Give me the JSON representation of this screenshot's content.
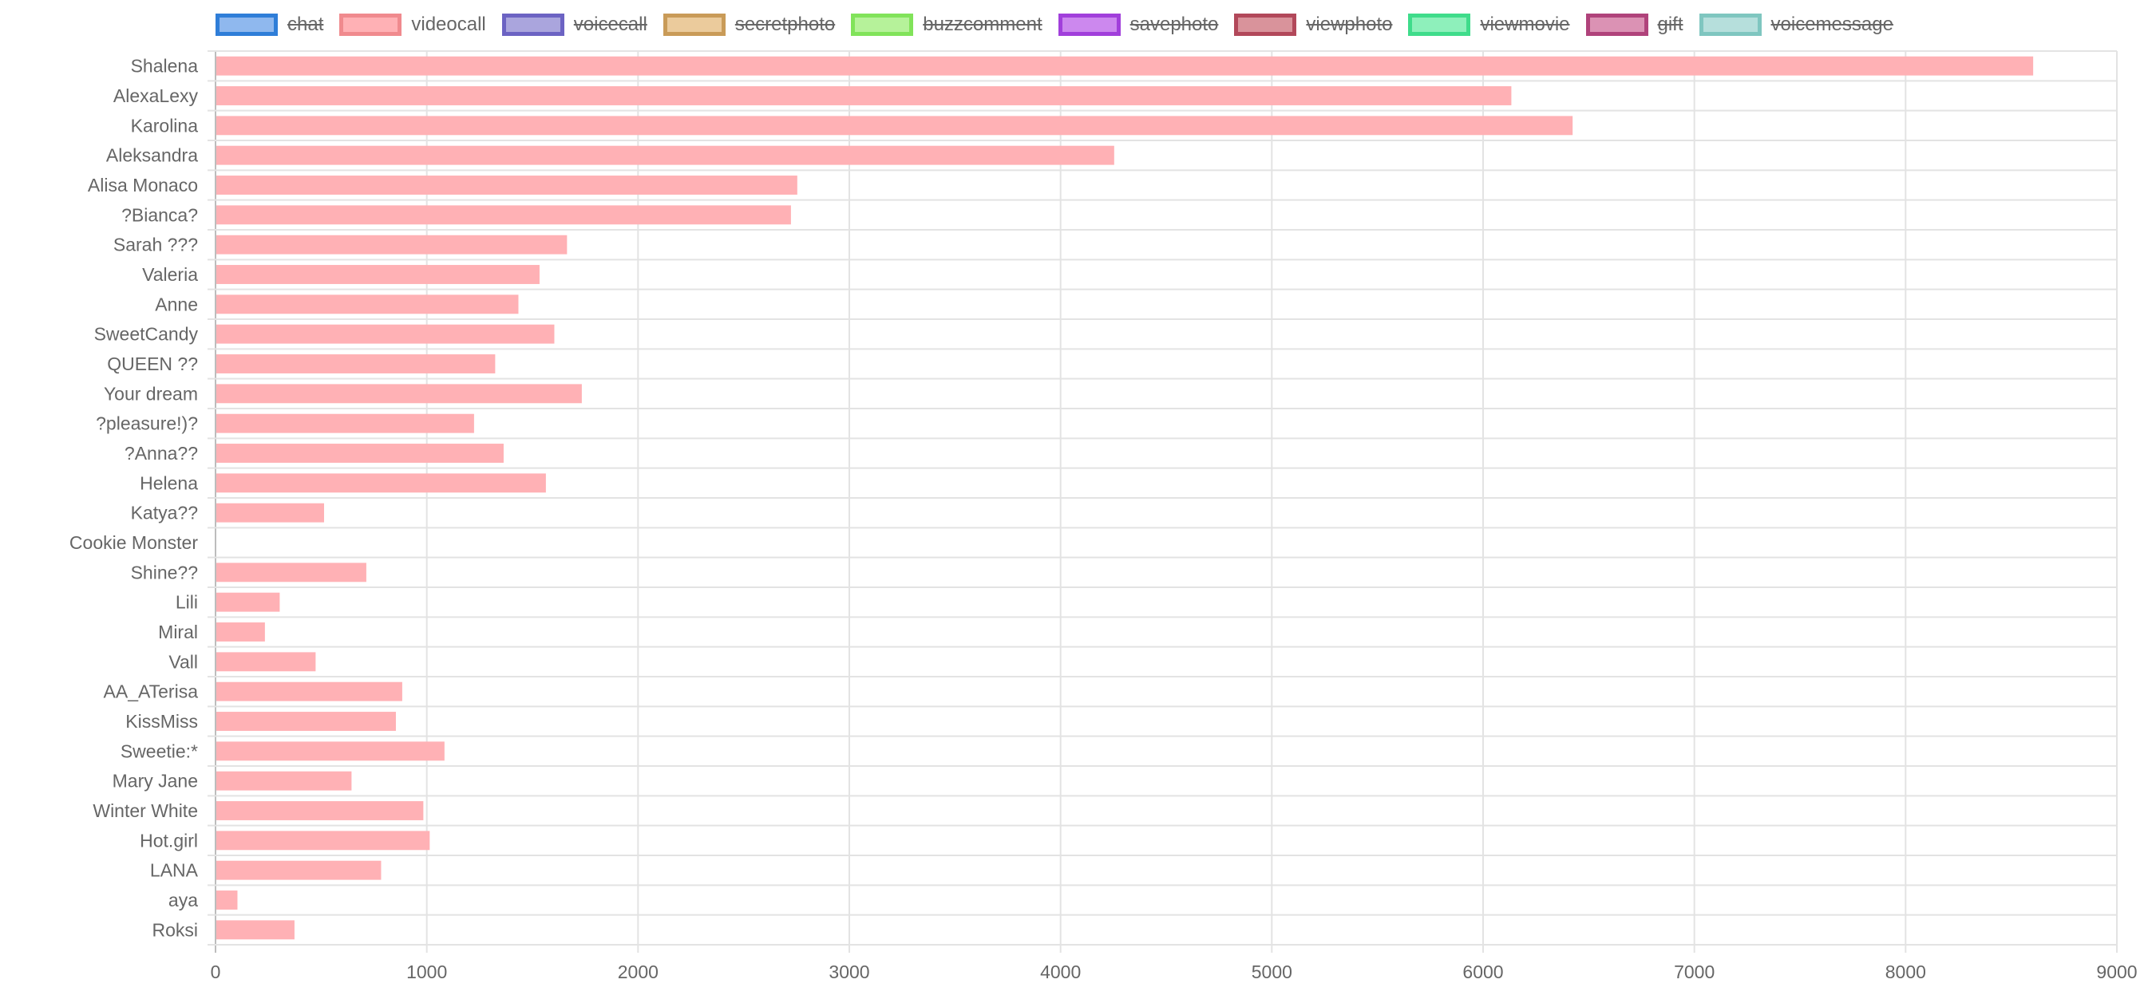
{
  "chart_data": {
    "type": "bar",
    "orientation": "horizontal",
    "legend": [
      {
        "name": "chat",
        "hidden": true,
        "fill": "#8fb8ee",
        "border": "#2f7ed8"
      },
      {
        "name": "videocall",
        "hidden": false,
        "fill": "#ffb1b5",
        "border": "#f08a8e"
      },
      {
        "name": "voicecall",
        "hidden": true,
        "fill": "#aaa5dd",
        "border": "#6c63c3"
      },
      {
        "name": "secretphoto",
        "hidden": true,
        "fill": "#ebcb9c",
        "border": "#c99b58"
      },
      {
        "name": "buzzcomment",
        "hidden": true,
        "fill": "#b6f29a",
        "border": "#81e35a"
      },
      {
        "name": "savephoto",
        "hidden": true,
        "fill": "#cc88ee",
        "border": "#a13fdb"
      },
      {
        "name": "viewphoto",
        "hidden": true,
        "fill": "#d9939b",
        "border": "#b2485a"
      },
      {
        "name": "viewmovie",
        "hidden": true,
        "fill": "#8ef0bb",
        "border": "#3fdc8b"
      },
      {
        "name": "gift",
        "hidden": true,
        "fill": "#db92b4",
        "border": "#b0437b"
      },
      {
        "name": "voicemessage",
        "hidden": true,
        "fill": "#b6dfdc",
        "border": "#7fc6c0"
      }
    ],
    "categories": [
      "Shalena",
      "AlexaLexy",
      "Karolina",
      "Aleksandra",
      "Alisa Monaco",
      "?Bianca?",
      "Sarah ???",
      "Valeria",
      "Anne",
      "SweetCandy",
      "QUEEN ??",
      "Your dream",
      "?pleasure!)?",
      "?Anna??",
      "Helena",
      "Katya??",
      "Cookie Monster",
      "Shine??",
      "Lili",
      "Miral",
      "Vall",
      "AA_ATerisa",
      "KissMiss",
      "Sweetie:*",
      "Mary Jane",
      "Winter White",
      "Hot.girl",
      "LANA",
      "aya",
      "Roksi"
    ],
    "series": [
      {
        "name": "videocall",
        "color": "#ffb1b5",
        "values": [
          8600,
          6130,
          6420,
          4250,
          2750,
          2720,
          1660,
          1530,
          1430,
          1600,
          1320,
          1730,
          1220,
          1360,
          1560,
          510,
          0,
          710,
          300,
          230,
          470,
          880,
          850,
          1080,
          640,
          980,
          1010,
          780,
          100,
          370
        ]
      }
    ],
    "xlim": [
      0,
      9000
    ],
    "xticks": [
      0,
      1000,
      2000,
      3000,
      4000,
      5000,
      6000,
      7000,
      8000,
      9000
    ],
    "grid": true,
    "legend_position": "top"
  }
}
